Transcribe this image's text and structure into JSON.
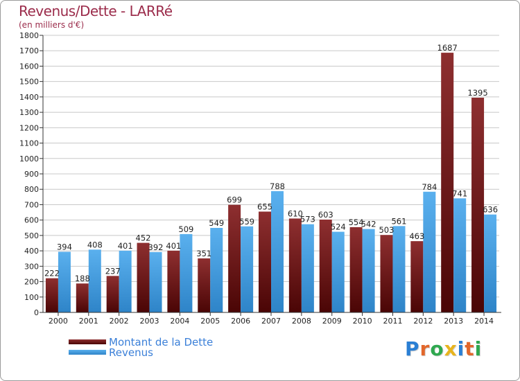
{
  "header": {
    "title": "Revenus/Dette - LARRé",
    "subtitle": "(en milliers d'€)"
  },
  "colors": {
    "dette_top": "#8e2f30",
    "dette_bottom": "#4a0505",
    "revenus_top": "#5ab0ee",
    "revenus_bottom": "#2e84c8",
    "grid": "#c8c8c8",
    "title": "#9b2c4b"
  },
  "chart_data": {
    "type": "bar",
    "categories": [
      "2000",
      "2001",
      "2002",
      "2003",
      "2004",
      "2005",
      "2006",
      "2007",
      "2008",
      "2009",
      "2010",
      "2011",
      "2012",
      "2013",
      "2014"
    ],
    "series": [
      {
        "name": "Montant de la Dette",
        "values": [
          222,
          188,
          237,
          452,
          401,
          351,
          699,
          655,
          610,
          603,
          554,
          503,
          463,
          1687,
          1395
        ]
      },
      {
        "name": "Revenus",
        "values": [
          394,
          408,
          401,
          392,
          509,
          549,
          559,
          788,
          573,
          524,
          542,
          561,
          784,
          741,
          636
        ]
      }
    ],
    "ylim": [
      0,
      1800
    ],
    "yticks": [
      0,
      100,
      200,
      300,
      400,
      500,
      600,
      700,
      800,
      900,
      1000,
      1100,
      1200,
      1300,
      1400,
      1500,
      1600,
      1700,
      1800
    ],
    "grid": true,
    "legend_position": "bottom-left"
  },
  "brand": {
    "letters": [
      "P",
      "r",
      "o",
      "x",
      "i",
      "t",
      "i"
    ],
    "colors": [
      "#2a7fd4",
      "#e2672b",
      "#2fa84f",
      "#e8b41e",
      "#2a7fd4",
      "#e2672b",
      "#2fa84f"
    ]
  }
}
